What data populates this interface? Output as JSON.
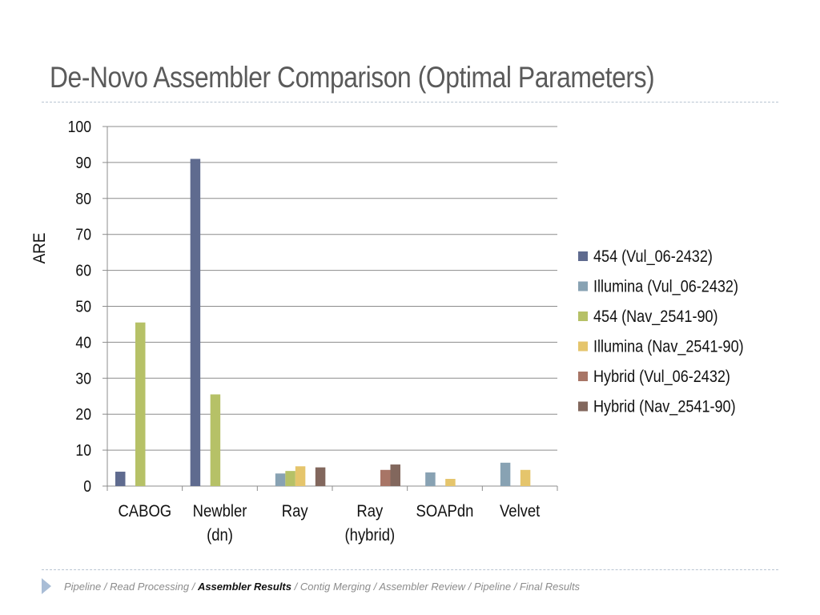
{
  "slide": {
    "title": "De-Novo Assembler Comparison (Optimal Parameters)"
  },
  "breadcrumb": {
    "before": "Pipeline / Read Processing / ",
    "current": "Assembler Results",
    "after": " / Contig Merging / Assembler Review / Pipeline / Final Results"
  },
  "colors": {
    "title": "#5a5a5a",
    "gridline": "#8c8c8c",
    "divider": "#b9c5d2",
    "footer_arrow": "#a9bdd6"
  },
  "chart_data": {
    "type": "bar",
    "ylabel": "ARE",
    "xlabel": "",
    "ylim": [
      0,
      100
    ],
    "yticks": [
      0,
      10,
      20,
      30,
      40,
      50,
      60,
      70,
      80,
      90,
      100
    ],
    "grid": true,
    "legend_position": "right",
    "categories": [
      [
        "CABOG"
      ],
      [
        "Newbler",
        "(dn)"
      ],
      [
        "Ray"
      ],
      [
        "Ray",
        "(hybrid)"
      ],
      [
        "SOAPdn"
      ],
      [
        "Velvet"
      ]
    ],
    "series": [
      {
        "name": "454 (Vul_06-2432)",
        "color": "#5f6b8f",
        "values": [
          4,
          91,
          null,
          null,
          null,
          null
        ]
      },
      {
        "name": "Illumina (Vul_06-2432)",
        "color": "#88a2b3",
        "values": [
          null,
          null,
          3.5,
          null,
          3.8,
          6.5
        ]
      },
      {
        "name": "454 (Nav_2541-90)",
        "color": "#b6c167",
        "values": [
          45.5,
          25.5,
          4.2,
          null,
          null,
          null
        ]
      },
      {
        "name": "Illumina (Nav_2541-90)",
        "color": "#e5c56c",
        "values": [
          null,
          null,
          5.5,
          null,
          2,
          4.5
        ]
      },
      {
        "name": "Hybrid (Vul_06-2432)",
        "color": "#a87566",
        "values": [
          null,
          null,
          null,
          4.5,
          null,
          null
        ]
      },
      {
        "name": "Hybrid (Nav_2541-90)",
        "color": "#82675d",
        "values": [
          null,
          null,
          5.2,
          6,
          null,
          null
        ]
      }
    ]
  }
}
